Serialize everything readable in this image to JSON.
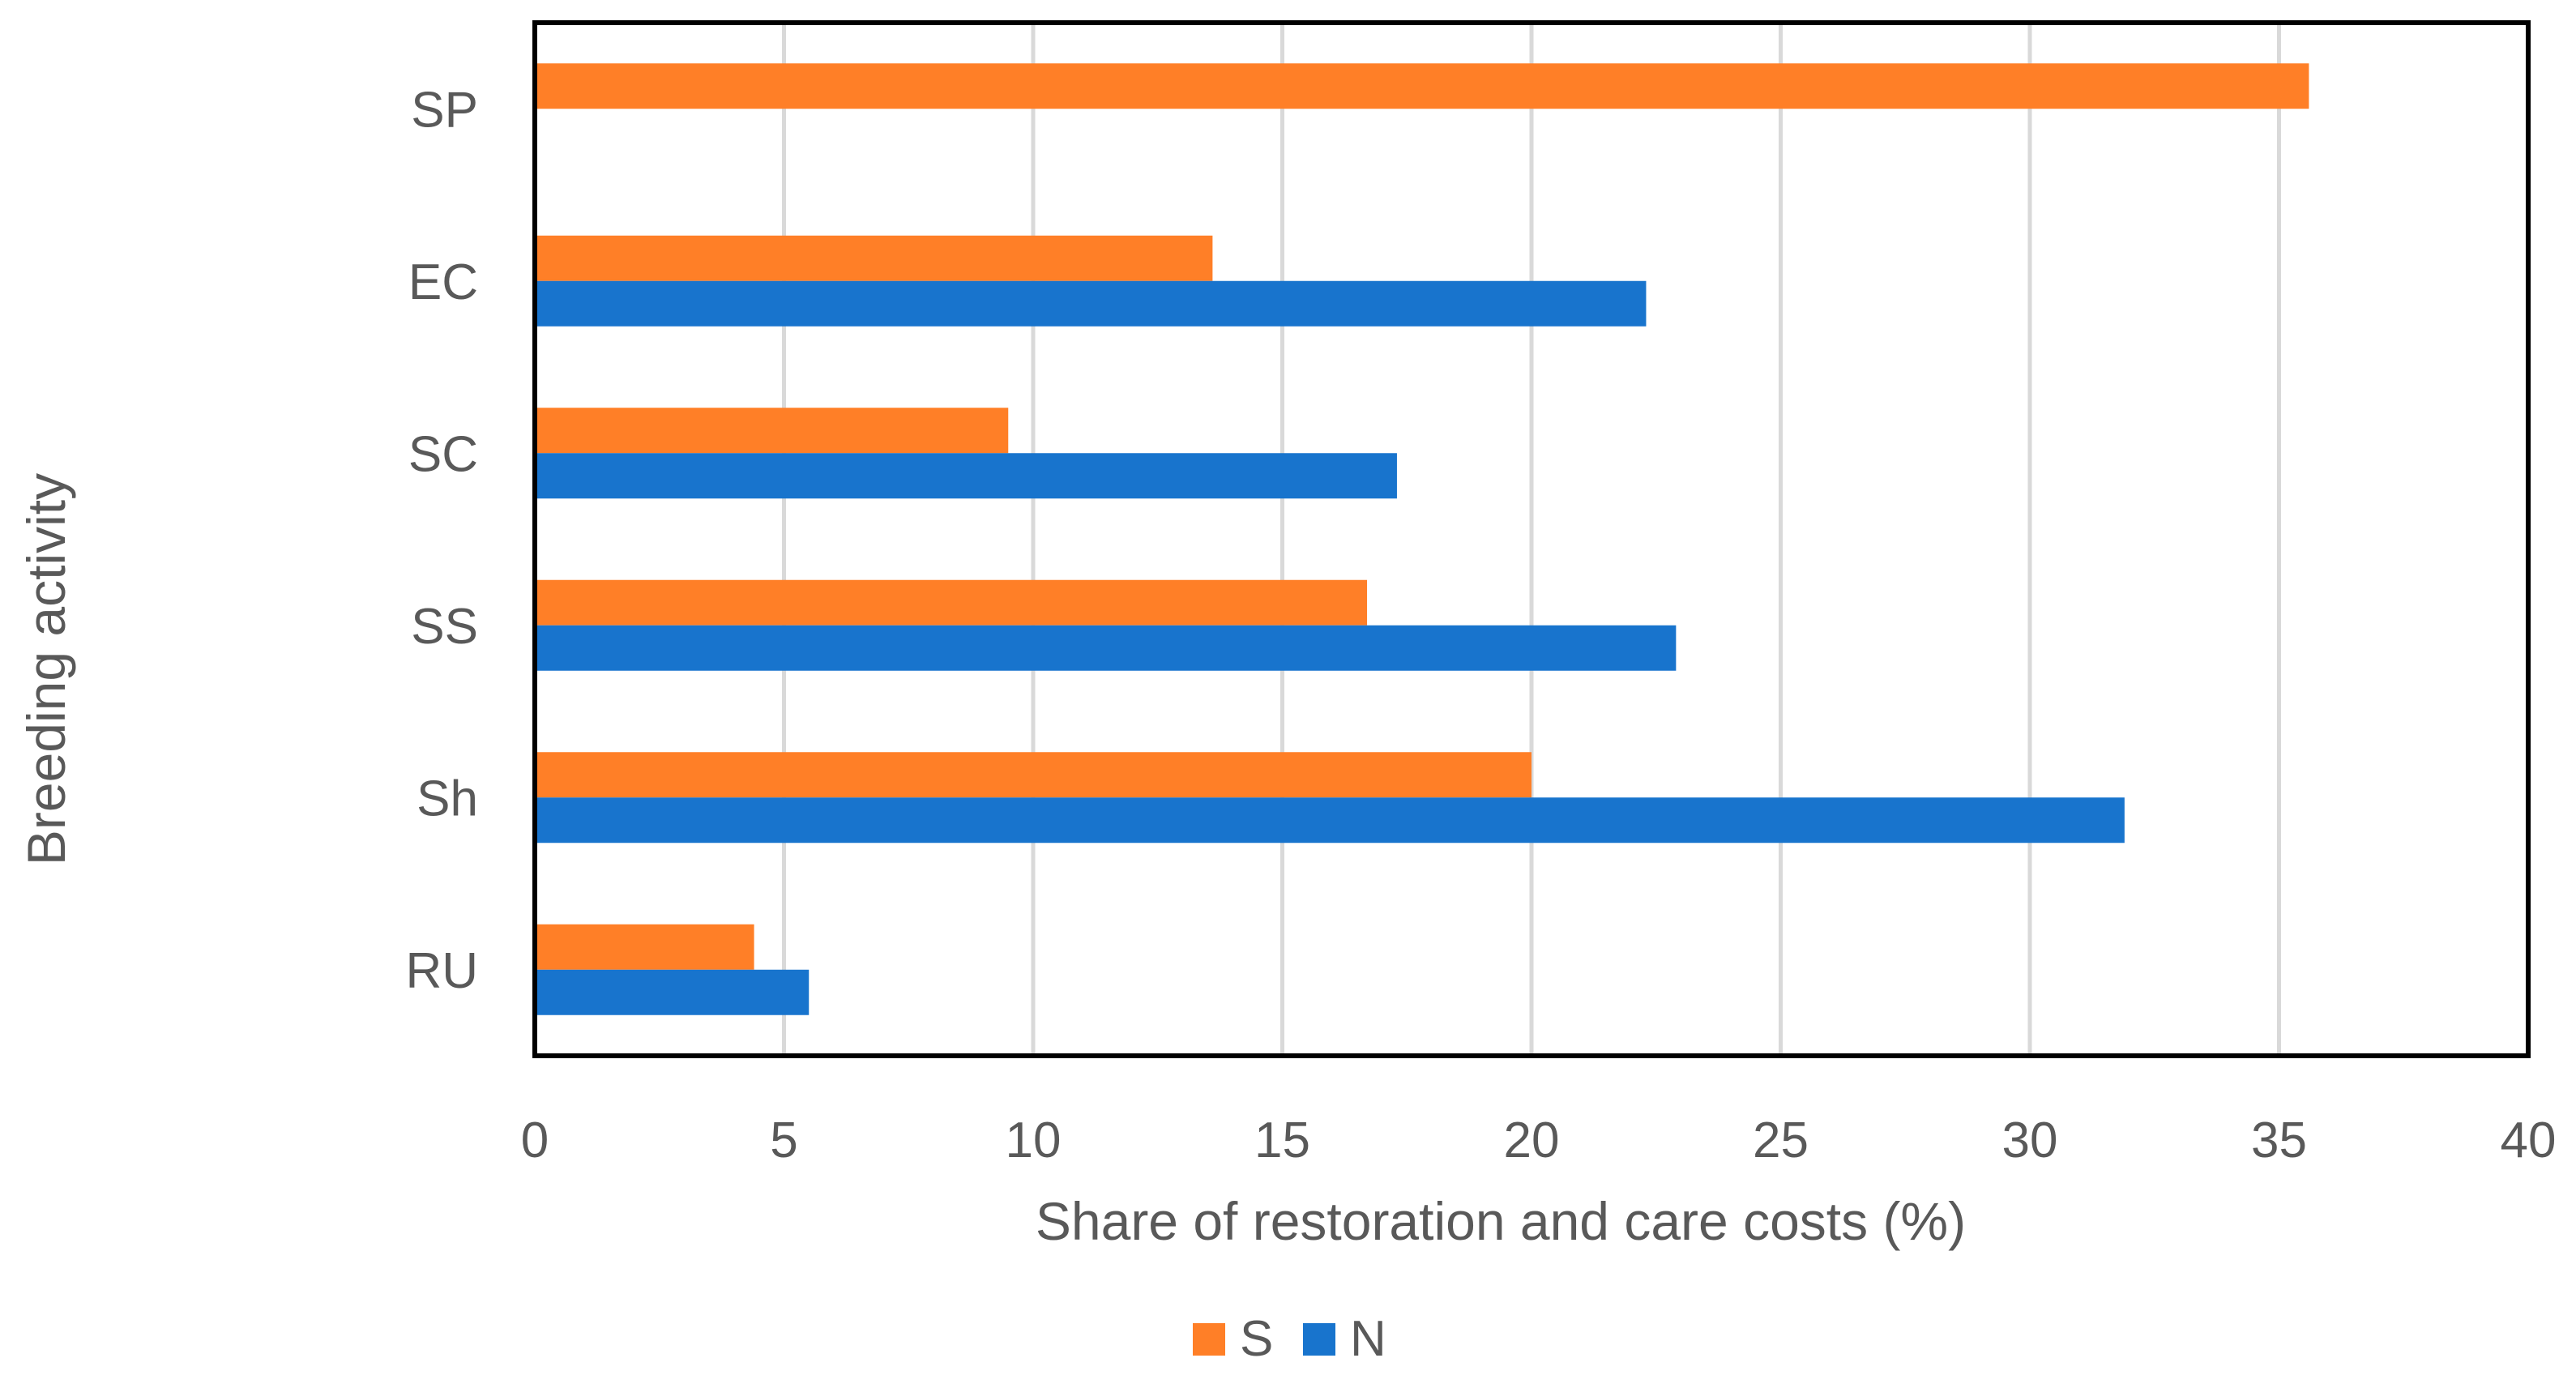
{
  "chart_data": {
    "type": "bar",
    "orientation": "horizontal",
    "title": "",
    "xlabel": "Share of restoration and care costs (%)",
    "ylabel": "Breeding activity",
    "categories": [
      "SP",
      "EC",
      "SC",
      "SS",
      "Sh",
      "RU"
    ],
    "series": [
      {
        "name": "S",
        "color": "#FF7F27",
        "values": [
          35.6,
          13.6,
          9.5,
          16.7,
          20.0,
          4.4
        ]
      },
      {
        "name": "N",
        "color": "#1874CD",
        "values": [
          null,
          22.3,
          17.3,
          22.9,
          31.9,
          5.5
        ]
      }
    ],
    "xlim": [
      0,
      40
    ],
    "xticks": [
      0,
      5,
      10,
      15,
      20,
      25,
      30,
      35,
      40
    ],
    "xtick_labels": [
      "0",
      "5",
      "10",
      "15",
      "20",
      "25",
      "30",
      "35",
      "40"
    ],
    "grid": "vertical",
    "legend_position": "bottom-center",
    "colors": {
      "axis_label": "#595959",
      "tick_label": "#595959",
      "grid": "#D9D9D9",
      "frame": "#000000"
    }
  }
}
